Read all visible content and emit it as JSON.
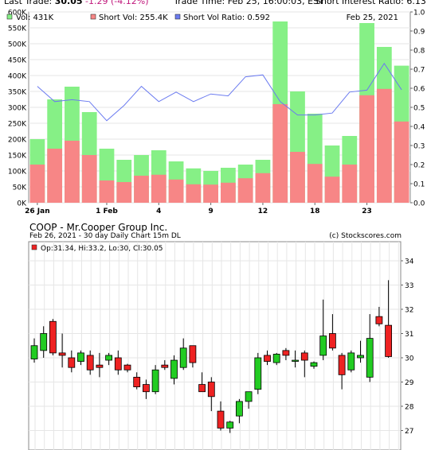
{
  "header": {
    "last_trade_label": "Last Trade:",
    "last_trade_value": "30.05",
    "last_trade_change": "-1.29 (-4.12%)",
    "trade_time": "Trade Time: Feb 25, 16:00:03, EST",
    "short_interest": "Short Interest Ratio: 6.13"
  },
  "colors": {
    "vol": "#86f086",
    "short_vol": "#f78686",
    "ratio_line": "#6b7bf0",
    "candle_up": "#22cc22",
    "candle_down": "#ee2222"
  },
  "chart1": {
    "legend": {
      "vol": "Vol: 431K",
      "short": "Short Vol: 255.4K",
      "ratio": "Short Vol Ratio: 0.592",
      "date": "Feb 25, 2021"
    },
    "y_left_ticks": [
      "600K",
      "550K",
      "500K",
      "450K",
      "400K",
      "350K",
      "300K",
      "250K",
      "200K",
      "150K",
      "100K",
      "50K",
      "0K"
    ],
    "y_right_ticks": [
      "1.0",
      "0.9",
      "0.8",
      "0.7",
      "0.6",
      "0.5",
      "0.4",
      "0.3",
      "0.2",
      "0.1",
      "0.0"
    ],
    "x_ticks": [
      {
        "i": 0,
        "label": "26 Jan"
      },
      {
        "i": 4,
        "label": "1 Feb"
      },
      {
        "i": 7,
        "label": "4"
      },
      {
        "i": 10,
        "label": "9"
      },
      {
        "i": 13,
        "label": "12"
      },
      {
        "i": 16,
        "label": "18"
      },
      {
        "i": 19,
        "label": "23"
      }
    ]
  },
  "chart2": {
    "title": "COOP - Mr.Cooper Group Inc.",
    "subtitle": "Feb 26, 2021 - 30 day  Daily Chart 15m DL",
    "copyright": "(c) Stockscores.com",
    "ohlc_label": "Op:31.34, Hi:33.2, Lo:30, Cl:30.05",
    "y_ticks": [
      "34",
      "33",
      "32",
      "31",
      "30",
      "29",
      "28",
      "27"
    ]
  },
  "chart_data": [
    {
      "type": "bar",
      "title": "",
      "ylim": [
        0,
        600000
      ],
      "y2lim": [
        0,
        1.0
      ],
      "series": [
        {
          "name": "Vol",
          "values": [
            200000,
            325000,
            365000,
            285000,
            170000,
            135000,
            150000,
            165000,
            130000,
            108000,
            100000,
            110000,
            120000,
            135000,
            570000,
            350000,
            280000,
            180000,
            210000,
            565000,
            490000,
            431000
          ]
        },
        {
          "name": "Short Vol",
          "values": [
            120000,
            170000,
            195000,
            150000,
            70000,
            65000,
            85000,
            88000,
            73000,
            58000,
            57000,
            63000,
            77000,
            93000,
            310000,
            160000,
            122000,
            82000,
            120000,
            338000,
            358000,
            255400
          ]
        },
        {
          "name": "Short Vol Ratio",
          "values": [
            0.61,
            0.53,
            0.54,
            0.53,
            0.43,
            0.51,
            0.61,
            0.53,
            0.58,
            0.53,
            0.57,
            0.56,
            0.66,
            0.67,
            0.53,
            0.46,
            0.46,
            0.47,
            0.58,
            0.59,
            0.73,
            0.592
          ]
        }
      ]
    },
    {
      "type": "candlestick",
      "title": "COOP - Mr.Cooper Group Inc.",
      "ylim": [
        26.5,
        34.5
      ],
      "candles": [
        {
          "o": 29.95,
          "h": 30.8,
          "l": 29.8,
          "c": 30.5
        },
        {
          "o": 30.3,
          "h": 31.3,
          "l": 30.0,
          "c": 31.0
        },
        {
          "o": 31.5,
          "h": 31.6,
          "l": 30.1,
          "c": 30.2
        },
        {
          "o": 30.2,
          "h": 31.0,
          "l": 29.6,
          "c": 30.1
        },
        {
          "o": 30.0,
          "h": 30.3,
          "l": 29.4,
          "c": 29.6
        },
        {
          "o": 29.85,
          "h": 30.3,
          "l": 29.7,
          "c": 30.2
        },
        {
          "o": 30.1,
          "h": 30.3,
          "l": 29.3,
          "c": 29.5
        },
        {
          "o": 29.7,
          "h": 30.2,
          "l": 29.2,
          "c": 29.6
        },
        {
          "o": 29.9,
          "h": 30.2,
          "l": 29.7,
          "c": 30.1
        },
        {
          "o": 30.0,
          "h": 30.3,
          "l": 29.3,
          "c": 29.5
        },
        {
          "o": 29.7,
          "h": 29.75,
          "l": 29.4,
          "c": 29.5
        },
        {
          "o": 29.2,
          "h": 29.4,
          "l": 28.7,
          "c": 28.8
        },
        {
          "o": 28.9,
          "h": 29.1,
          "l": 28.3,
          "c": 28.6
        },
        {
          "o": 28.6,
          "h": 29.7,
          "l": 28.5,
          "c": 29.5
        },
        {
          "o": 29.7,
          "h": 29.9,
          "l": 29.5,
          "c": 29.6
        },
        {
          "o": 29.15,
          "h": 30.1,
          "l": 28.9,
          "c": 29.9
        },
        {
          "o": 29.6,
          "h": 30.8,
          "l": 29.5,
          "c": 30.4
        },
        {
          "o": 30.5,
          "h": 30.5,
          "l": 29.6,
          "c": 29.8
        },
        {
          "o": 28.9,
          "h": 29.4,
          "l": 28.6,
          "c": 28.6
        },
        {
          "o": 29.0,
          "h": 29.2,
          "l": 27.8,
          "c": 28.4
        },
        {
          "o": 27.8,
          "h": 28.2,
          "l": 27.0,
          "c": 27.1
        },
        {
          "o": 27.1,
          "h": 27.4,
          "l": 26.9,
          "c": 27.35
        },
        {
          "o": 27.6,
          "h": 28.3,
          "l": 27.3,
          "c": 28.2
        },
        {
          "o": 28.2,
          "h": 28.6,
          "l": 27.9,
          "c": 28.6
        },
        {
          "o": 28.7,
          "h": 30.2,
          "l": 28.5,
          "c": 30.0
        },
        {
          "o": 30.1,
          "h": 30.3,
          "l": 29.7,
          "c": 29.85
        },
        {
          "o": 29.8,
          "h": 30.2,
          "l": 29.7,
          "c": 30.15
        },
        {
          "o": 30.3,
          "h": 30.4,
          "l": 29.9,
          "c": 30.1
        },
        {
          "o": 29.9,
          "h": 30.3,
          "l": 29.6,
          "c": 29.9
        },
        {
          "o": 30.2,
          "h": 30.3,
          "l": 29.2,
          "c": 29.9
        },
        {
          "o": 29.65,
          "h": 29.85,
          "l": 29.55,
          "c": 29.8
        },
        {
          "o": 30.1,
          "h": 32.4,
          "l": 29.9,
          "c": 30.9
        },
        {
          "o": 31.0,
          "h": 31.8,
          "l": 30.3,
          "c": 30.4
        },
        {
          "o": 30.1,
          "h": 30.2,
          "l": 28.7,
          "c": 29.3
        },
        {
          "o": 29.5,
          "h": 30.3,
          "l": 29.4,
          "c": 30.2
        },
        {
          "o": 30.0,
          "h": 30.7,
          "l": 29.8,
          "c": 30.1
        },
        {
          "o": 29.2,
          "h": 31.8,
          "l": 29.0,
          "c": 30.8
        },
        {
          "o": 31.7,
          "h": 32.1,
          "l": 31.3,
          "c": 31.4
        },
        {
          "o": 31.34,
          "h": 33.2,
          "l": 30.0,
          "c": 30.05
        }
      ]
    }
  ]
}
